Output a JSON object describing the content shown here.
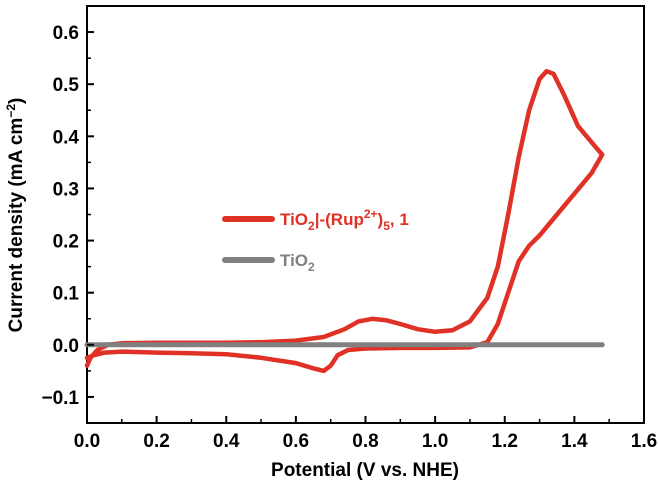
{
  "chart_data": {
    "type": "line",
    "title": "",
    "xlabel": "Potential (V vs. NHE)",
    "ylabel": {
      "main": "Current density (mA cm",
      "sup": "−2",
      "close": ")"
    },
    "xlim": [
      0.0,
      1.6
    ],
    "ylim": [
      -0.15,
      0.65
    ],
    "xticks": [
      0.0,
      0.2,
      0.4,
      0.6,
      0.8,
      1.0,
      1.2,
      1.4,
      1.6
    ],
    "xtick_labels": [
      "0.0",
      "0.2",
      "0.4",
      "0.6",
      "0.8",
      "1.0",
      "1.2",
      "1.4",
      "1.6"
    ],
    "yticks": [
      -0.1,
      0.0,
      0.1,
      0.2,
      0.3,
      0.4,
      0.5,
      0.6
    ],
    "ytick_labels": [
      "−0.1",
      "0.0",
      "0.1",
      "0.2",
      "0.3",
      "0.4",
      "0.5",
      "0.6"
    ],
    "legend_position": "middle-left",
    "series": [
      {
        "name": "TiO2|-(Rup2+)5, 1",
        "color": "#e03127",
        "legend_parts": {
          "a": "TiO",
          "a_sub": "2",
          "b": "|-(Rup",
          "b_sup": "2+",
          "c": ")",
          "c_sub": "5",
          "d": ", 1"
        },
        "points": [
          [
            0.0,
            -0.04
          ],
          [
            0.01,
            -0.025
          ],
          [
            0.03,
            -0.01
          ],
          [
            0.06,
            0.0
          ],
          [
            0.1,
            0.003
          ],
          [
            0.2,
            0.004
          ],
          [
            0.3,
            0.004
          ],
          [
            0.4,
            0.004
          ],
          [
            0.5,
            0.005
          ],
          [
            0.6,
            0.008
          ],
          [
            0.68,
            0.015
          ],
          [
            0.74,
            0.03
          ],
          [
            0.78,
            0.045
          ],
          [
            0.82,
            0.05
          ],
          [
            0.86,
            0.047
          ],
          [
            0.9,
            0.04
          ],
          [
            0.95,
            0.03
          ],
          [
            1.0,
            0.025
          ],
          [
            1.05,
            0.028
          ],
          [
            1.1,
            0.045
          ],
          [
            1.15,
            0.09
          ],
          [
            1.18,
            0.15
          ],
          [
            1.21,
            0.25
          ],
          [
            1.24,
            0.36
          ],
          [
            1.27,
            0.45
          ],
          [
            1.3,
            0.51
          ],
          [
            1.32,
            0.525
          ],
          [
            1.34,
            0.52
          ],
          [
            1.37,
            0.48
          ],
          [
            1.41,
            0.42
          ],
          [
            1.46,
            0.38
          ],
          [
            1.48,
            0.365
          ],
          [
            1.45,
            0.33
          ],
          [
            1.4,
            0.29
          ],
          [
            1.35,
            0.25
          ],
          [
            1.3,
            0.21
          ],
          [
            1.27,
            0.19
          ],
          [
            1.24,
            0.16
          ],
          [
            1.21,
            0.1
          ],
          [
            1.18,
            0.04
          ],
          [
            1.15,
            0.005
          ],
          [
            1.1,
            -0.005
          ],
          [
            1.0,
            -0.006
          ],
          [
            0.9,
            -0.006
          ],
          [
            0.8,
            -0.007
          ],
          [
            0.75,
            -0.01
          ],
          [
            0.72,
            -0.02
          ],
          [
            0.7,
            -0.04
          ],
          [
            0.68,
            -0.05
          ],
          [
            0.65,
            -0.045
          ],
          [
            0.6,
            -0.035
          ],
          [
            0.5,
            -0.025
          ],
          [
            0.4,
            -0.018
          ],
          [
            0.3,
            -0.016
          ],
          [
            0.2,
            -0.015
          ],
          [
            0.1,
            -0.013
          ],
          [
            0.05,
            -0.015
          ],
          [
            0.02,
            -0.02
          ],
          [
            0.0,
            -0.025
          ]
        ]
      },
      {
        "name": "TiO2",
        "color": "#808080",
        "legend_parts": {
          "a": "TiO",
          "a_sub": "2"
        },
        "points": [
          [
            0.0,
            0.0
          ],
          [
            0.5,
            0.0
          ],
          [
            1.0,
            0.0
          ],
          [
            1.48,
            0.0
          ]
        ]
      }
    ]
  }
}
